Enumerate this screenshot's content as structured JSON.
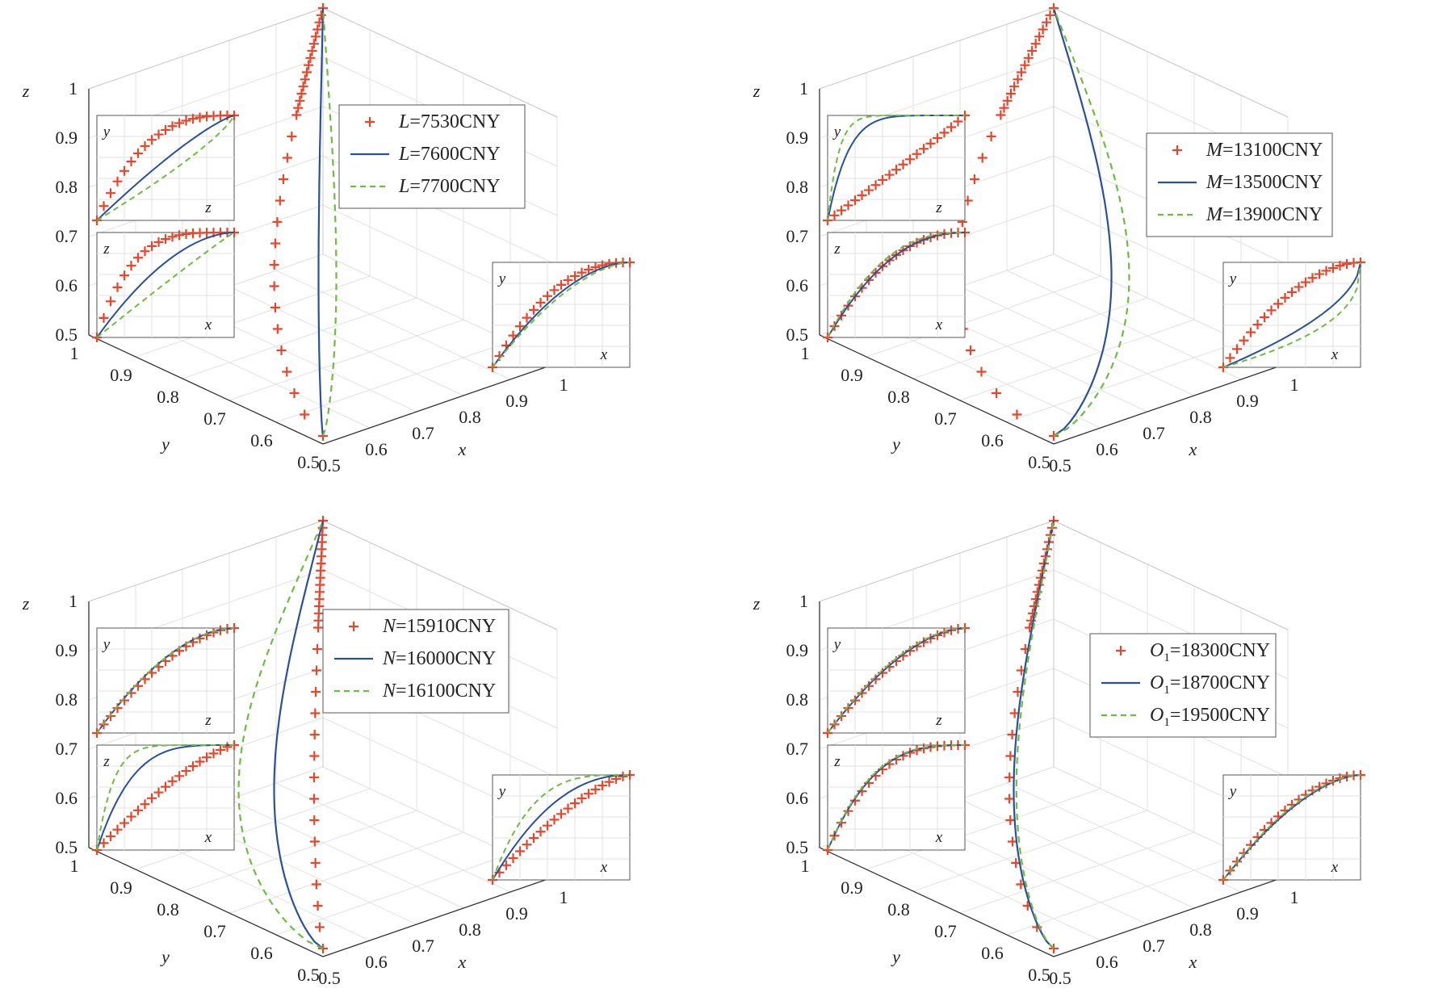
{
  "chart_data": [
    {
      "type": "line",
      "axes": {
        "x": {
          "label": "x",
          "range": [
            0.5,
            1
          ]
        },
        "y": {
          "label": "y",
          "range": [
            0.5,
            1
          ]
        },
        "z": {
          "label": "z",
          "range": [
            0.5,
            1
          ]
        }
      },
      "ticks": [
        "0.5",
        "0.6",
        "0.7",
        "0.8",
        "0.9",
        "1"
      ],
      "grid": true,
      "legend_position": "top-right",
      "series": [
        {
          "name": "L=7530CNY",
          "italic": "L",
          "rest": "=7530CNY",
          "style": "marker",
          "color": "#e8452b",
          "bend": -0.55,
          "ins": {
            "yz": 0.35,
            "zx": 0.25,
            "yx": 0.45
          }
        },
        {
          "name": "L=7600CNY",
          "italic": "L",
          "rest": "=7600CNY",
          "style": "solid",
          "color": "#2a4f9c",
          "bend": -0.05,
          "ins": {
            "yz": 0.8,
            "zx": 0.55,
            "yx": 0.55
          }
        },
        {
          "name": "L=7700CNY",
          "italic": "L",
          "rest": "=7700CNY",
          "style": "dashed",
          "color": "#6dbb45",
          "bend": 0.15,
          "ins": {
            "yz": 1.25,
            "zx": 0.95,
            "yx": 0.6
          }
        }
      ]
    },
    {
      "type": "line",
      "axes": {
        "x": {
          "label": "x",
          "range": [
            0.5,
            1
          ]
        },
        "y": {
          "label": "y",
          "range": [
            0.5,
            1
          ]
        },
        "z": {
          "label": "z",
          "range": [
            0.5,
            1
          ]
        }
      },
      "ticks": [
        "0.5",
        "0.6",
        "0.7",
        "0.8",
        "0.9",
        "1"
      ],
      "grid": true,
      "legend_position": "top-right",
      "series": [
        {
          "name": "M=13100CNY",
          "italic": "M",
          "rest": "=13100CNY",
          "style": "marker",
          "color": "#e8452b",
          "bend": -1.1,
          "ins": {
            "yz": 1.05,
            "zx": 0.45,
            "yx": 0.55
          }
        },
        {
          "name": "M=13500CNY",
          "italic": "M",
          "rest": "=13500CNY",
          "style": "solid",
          "color": "#2a4f9c",
          "bend": 0.65,
          "ins": {
            "yz": 0.15,
            "zx": 0.45,
            "yx": 1.8
          }
        },
        {
          "name": "M=13900CNY",
          "italic": "M",
          "rest": "=13900CNY",
          "style": "dashed",
          "color": "#6dbb45",
          "bend": 0.85,
          "ins": {
            "yz": 0.08,
            "zx": 0.4,
            "yx": 2.6
          }
        }
      ]
    },
    {
      "type": "line",
      "axes": {
        "x": {
          "label": "x",
          "range": [
            0.5,
            1
          ]
        },
        "y": {
          "label": "y",
          "range": [
            0.5,
            1
          ]
        },
        "z": {
          "label": "z",
          "range": [
            0.5,
            1
          ]
        }
      },
      "ticks": [
        "0.5",
        "0.6",
        "0.7",
        "0.8",
        "0.9",
        "1"
      ],
      "grid": true,
      "legend_position": "top-right",
      "series": [
        {
          "name": "N=15910CNY",
          "italic": "N",
          "rest": "=15910CNY",
          "style": "marker",
          "color": "#e8452b",
          "bend": -0.1,
          "ins": {
            "yz": 0.6,
            "zx": 0.75,
            "yx": 0.7
          }
        },
        {
          "name": "N=16000CNY",
          "italic": "N",
          "rest": "=16000CNY",
          "style": "solid",
          "color": "#2a4f9c",
          "bend": -0.55,
          "ins": {
            "yz": 0.55,
            "zx": 0.25,
            "yx": 0.45
          }
        },
        {
          "name": "N=16100CNY",
          "italic": "N",
          "rest": "=16100CNY",
          "style": "dashed",
          "color": "#6dbb45",
          "bend": -0.95,
          "ins": {
            "yz": 0.55,
            "zx": 0.12,
            "yx": 0.28
          }
        }
      ]
    },
    {
      "type": "line",
      "axes": {
        "x": {
          "label": "x",
          "range": [
            0.5,
            1
          ]
        },
        "y": {
          "label": "y",
          "range": [
            0.5,
            1
          ]
        },
        "z": {
          "label": "z",
          "range": [
            0.5,
            1
          ]
        }
      },
      "ticks": [
        "0.5",
        "0.6",
        "0.7",
        "0.8",
        "0.9",
        "1"
      ],
      "grid": true,
      "legend_position": "top-right",
      "series": [
        {
          "name": "O1=18300CNY",
          "italic": "O",
          "sub": "1",
          "rest": "=18300CNY",
          "style": "marker",
          "color": "#e8452b",
          "bend": -0.5,
          "ins": {
            "yz": 0.6,
            "zx": 0.35,
            "yx": 0.55
          }
        },
        {
          "name": "O1=18700CNY",
          "italic": "O",
          "sub": "1",
          "rest": "=18700CNY",
          "style": "solid",
          "color": "#2a4f9c",
          "bend": -0.45,
          "ins": {
            "yz": 0.58,
            "zx": 0.33,
            "yx": 0.6
          }
        },
        {
          "name": "O1=19500CNY",
          "italic": "O",
          "sub": "1",
          "rest": "=19500CNY",
          "style": "dashed",
          "color": "#6dbb45",
          "bend": -0.42,
          "ins": {
            "yz": 0.56,
            "zx": 0.32,
            "yx": 0.58
          }
        }
      ]
    }
  ],
  "inset_labels": {
    "yz": {
      "v": "y",
      "h": "z"
    },
    "zx": {
      "v": "z",
      "h": "x"
    },
    "yx": {
      "v": "y",
      "h": "x"
    }
  }
}
